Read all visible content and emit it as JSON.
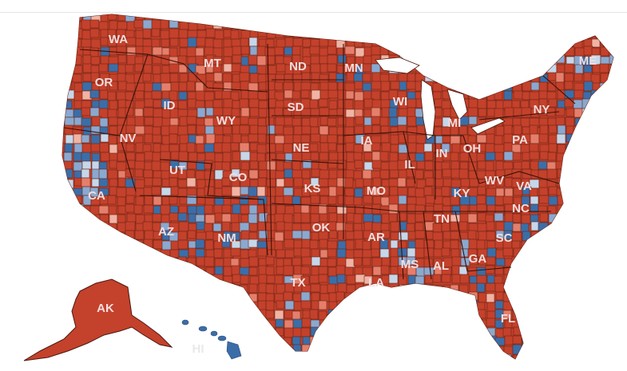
{
  "colors": {
    "strong_red": "#c4412b",
    "light_red": "#e57f6b",
    "pale_red": "#f1b3a4",
    "strong_blue": "#3b6ea8",
    "light_blue": "#8aa9d0",
    "pale_blue": "#c6d7ea",
    "border": "#4a1a10"
  },
  "map": {
    "state_labels": [
      "WA",
      "OR",
      "CA",
      "NV",
      "ID",
      "MT",
      "WY",
      "UT",
      "AZ",
      "CO",
      "NM",
      "ND",
      "SD",
      "NE",
      "KS",
      "OK",
      "TX",
      "MN",
      "IA",
      "MO",
      "AR",
      "LA",
      "WI",
      "IL",
      "MS",
      "AL",
      "MI",
      "IN",
      "OH",
      "KY",
      "TN",
      "GA",
      "FL",
      "SC",
      "NC",
      "VA",
      "WV",
      "PA",
      "NY",
      "ME",
      "AK",
      "HI"
    ]
  }
}
